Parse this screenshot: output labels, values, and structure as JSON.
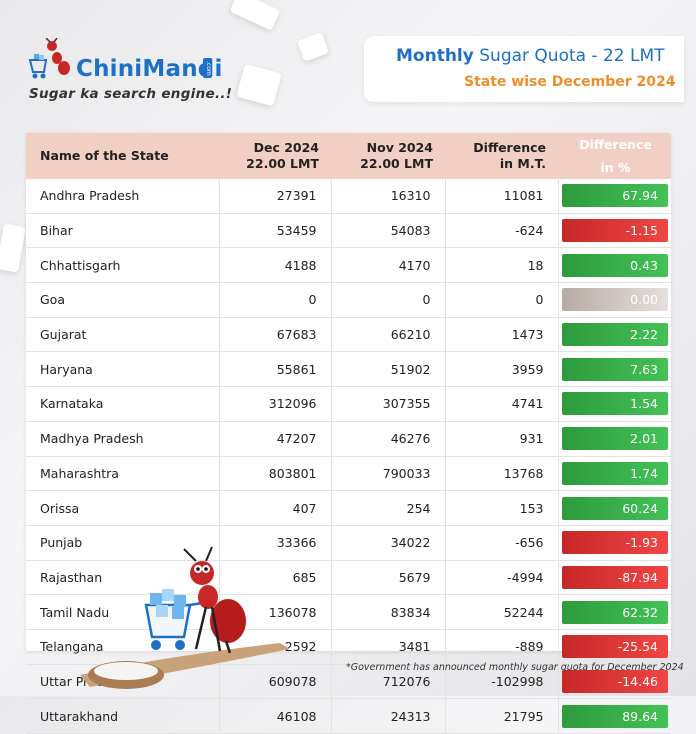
{
  "brand": {
    "name": "ChiniMandi",
    "domain": ".com",
    "tagline": "Sugar ka search engine..!"
  },
  "title": {
    "bold": "Monthly",
    "rest": " Sugar Quota - 22 LMT",
    "subtitle": "State wise December 2024"
  },
  "table": {
    "headers": [
      [
        "Name of the State"
      ],
      [
        "Dec 2024",
        "22.00 LMT"
      ],
      [
        "Nov 2024",
        "22.00 LMT"
      ],
      [
        "Difference",
        "in M.T."
      ],
      [
        "Difference",
        "in %"
      ]
    ],
    "rows": [
      {
        "state": "Andhra Pradesh",
        "dec": "27391",
        "nov": "16310",
        "diff": "11081",
        "pct": "67.94",
        "sign": "pos"
      },
      {
        "state": "Bihar",
        "dec": "53459",
        "nov": "54083",
        "diff": "-624",
        "pct": "-1.15",
        "sign": "neg"
      },
      {
        "state": "Chhattisgarh",
        "dec": "4188",
        "nov": "4170",
        "diff": "18",
        "pct": "0.43",
        "sign": "pos"
      },
      {
        "state": "Goa",
        "dec": "0",
        "nov": "0",
        "diff": "0",
        "pct": "0.00",
        "sign": "zero"
      },
      {
        "state": "Gujarat",
        "dec": "67683",
        "nov": "66210",
        "diff": "1473",
        "pct": "2.22",
        "sign": "pos"
      },
      {
        "state": "Haryana",
        "dec": "55861",
        "nov": "51902",
        "diff": "3959",
        "pct": "7.63",
        "sign": "pos"
      },
      {
        "state": "Karnataka",
        "dec": "312096",
        "nov": "307355",
        "diff": "4741",
        "pct": "1.54",
        "sign": "pos"
      },
      {
        "state": "Madhya Pradesh",
        "dec": "47207",
        "nov": "46276",
        "diff": "931",
        "pct": "2.01",
        "sign": "pos"
      },
      {
        "state": "Maharashtra",
        "dec": "803801",
        "nov": "790033",
        "diff": "13768",
        "pct": "1.74",
        "sign": "pos"
      },
      {
        "state": "Orissa",
        "dec": "407",
        "nov": "254",
        "diff": "153",
        "pct": "60.24",
        "sign": "pos"
      },
      {
        "state": "Punjab",
        "dec": "33366",
        "nov": "34022",
        "diff": "-656",
        "pct": "-1.93",
        "sign": "neg"
      },
      {
        "state": "Rajasthan",
        "dec": "685",
        "nov": "5679",
        "diff": "-4994",
        "pct": "-87.94",
        "sign": "neg"
      },
      {
        "state": "Tamil Nadu",
        "dec": "136078",
        "nov": "83834",
        "diff": "52244",
        "pct": "62.32",
        "sign": "pos"
      },
      {
        "state": "Telangana",
        "dec": "2592",
        "nov": "3481",
        "diff": "-889",
        "pct": "-25.54",
        "sign": "neg"
      },
      {
        "state": "Uttar Pradesh",
        "dec": "609078",
        "nov": "712076",
        "diff": "-102998",
        "pct": "-14.46",
        "sign": "neg"
      },
      {
        "state": "Uttarakhand",
        "dec": "46108",
        "nov": "24313",
        "diff": "21795",
        "pct": "89.64",
        "sign": "pos"
      }
    ]
  },
  "footnote": "*Government has announced monthly sugar quota for December 2024",
  "icons": {
    "logo": "ant-with-cart-icon",
    "mascot": "ant-mascot-with-sugar-cart-icon"
  },
  "colors": {
    "brand_blue": "#1f6fc5",
    "accent_orange": "#f28c28",
    "header_bg": "#f2cfc4",
    "positive": "#3fb74f",
    "negative": "#e03b3b",
    "neutral": "#d8d0cc"
  }
}
